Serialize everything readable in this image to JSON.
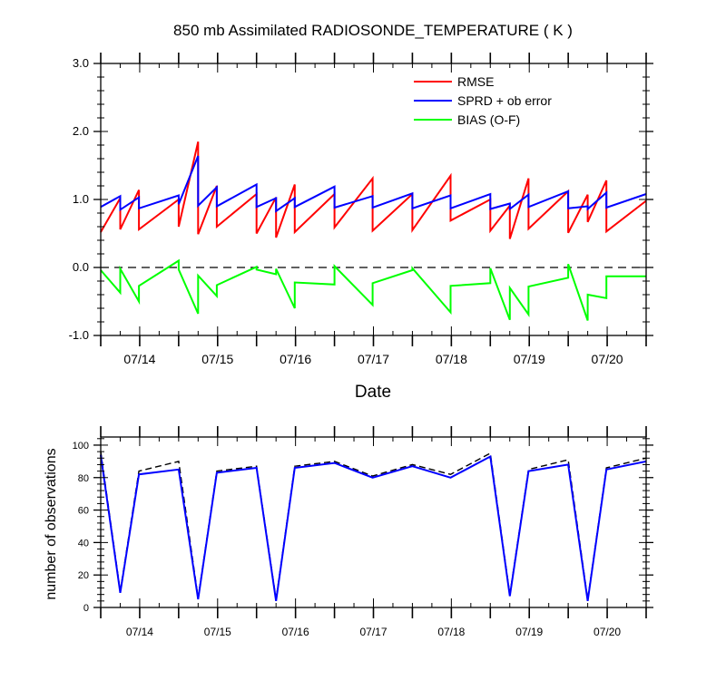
{
  "chart_data": [
    {
      "type": "line",
      "title": "850 mb Assimilated RADIOSONDE_TEMPERATURE ( K )",
      "xlabel": "Date",
      "ylabel": "",
      "xlim": [
        13.5,
        20.5
      ],
      "ylim": [
        -1.0,
        3.0
      ],
      "yticks": [
        -1.0,
        0.0,
        1.0,
        2.0,
        3.0
      ],
      "ytick_labels": [
        "-1.0",
        "0.0",
        "1.0",
        "2.0",
        "3.0"
      ],
      "xticks": [
        14,
        15,
        16,
        17,
        18,
        19,
        20
      ],
      "xtick_labels": [
        "07/14",
        "07/15",
        "07/16",
        "07/17",
        "07/18",
        "07/19",
        "07/20"
      ],
      "zero_line": true,
      "legend_position": "top-right",
      "series": [
        {
          "name": "RMSE",
          "color": "#ff0000",
          "points": [
            [
              13.5,
              0.52
            ],
            [
              13.75,
              1.02
            ],
            [
              13.75,
              0.56
            ],
            [
              13.99,
              1.14
            ],
            [
              13.99,
              0.56
            ],
            [
              14.5,
              1.0
            ],
            [
              14.5,
              0.6
            ],
            [
              14.75,
              1.85
            ],
            [
              14.75,
              0.49
            ],
            [
              14.99,
              1.2
            ],
            [
              14.99,
              0.6
            ],
            [
              15.5,
              1.08
            ],
            [
              15.5,
              0.5
            ],
            [
              15.75,
              1.03
            ],
            [
              15.75,
              0.44
            ],
            [
              15.99,
              1.22
            ],
            [
              15.99,
              0.52
            ],
            [
              16.5,
              1.08
            ],
            [
              16.5,
              0.59
            ],
            [
              16.99,
              1.31
            ],
            [
              16.99,
              0.54
            ],
            [
              17.5,
              1.08
            ],
            [
              17.5,
              0.55
            ],
            [
              17.99,
              1.35
            ],
            [
              17.99,
              0.69
            ],
            [
              18.5,
              1.0
            ],
            [
              18.5,
              0.54
            ],
            [
              18.75,
              0.91
            ],
            [
              18.75,
              0.42
            ],
            [
              18.99,
              1.31
            ],
            [
              18.99,
              0.57
            ],
            [
              19.5,
              1.12
            ],
            [
              19.5,
              0.51
            ],
            [
              19.75,
              1.07
            ],
            [
              19.75,
              0.67
            ],
            [
              19.99,
              1.28
            ],
            [
              19.99,
              0.53
            ],
            [
              20.5,
              0.98
            ]
          ]
        },
        {
          "name": "SPRD + ob error",
          "color": "#0000ff",
          "points": [
            [
              13.5,
              0.89
            ],
            [
              13.75,
              1.05
            ],
            [
              13.75,
              0.85
            ],
            [
              13.99,
              1.03
            ],
            [
              13.99,
              0.87
            ],
            [
              14.5,
              1.06
            ],
            [
              14.5,
              0.93
            ],
            [
              14.75,
              1.64
            ],
            [
              14.75,
              0.91
            ],
            [
              14.99,
              1.18
            ],
            [
              14.99,
              0.9
            ],
            [
              15.5,
              1.22
            ],
            [
              15.5,
              0.89
            ],
            [
              15.75,
              1.02
            ],
            [
              15.75,
              0.83
            ],
            [
              15.99,
              1.02
            ],
            [
              15.99,
              0.89
            ],
            [
              16.5,
              1.19
            ],
            [
              16.5,
              0.88
            ],
            [
              16.99,
              1.05
            ],
            [
              16.99,
              0.88
            ],
            [
              17.5,
              1.09
            ],
            [
              17.5,
              0.87
            ],
            [
              17.99,
              1.06
            ],
            [
              17.99,
              0.87
            ],
            [
              18.5,
              1.08
            ],
            [
              18.5,
              0.86
            ],
            [
              18.75,
              0.94
            ],
            [
              18.75,
              0.86
            ],
            [
              18.99,
              1.07
            ],
            [
              18.99,
              0.89
            ],
            [
              19.5,
              1.12
            ],
            [
              19.5,
              0.87
            ],
            [
              19.75,
              0.9
            ],
            [
              19.75,
              0.86
            ],
            [
              19.99,
              1.1
            ],
            [
              19.99,
              0.88
            ],
            [
              20.5,
              1.08
            ]
          ]
        },
        {
          "name": "BIAS (O-F)",
          "color": "#00ff00",
          "points": [
            [
              13.5,
              -0.04
            ],
            [
              13.75,
              -0.37
            ],
            [
              13.75,
              -0.02
            ],
            [
              13.99,
              -0.5
            ],
            [
              13.99,
              -0.27
            ],
            [
              14.5,
              0.1
            ],
            [
              14.5,
              -0.03
            ],
            [
              14.75,
              -0.68
            ],
            [
              14.75,
              -0.12
            ],
            [
              14.99,
              -0.42
            ],
            [
              14.99,
              -0.26
            ],
            [
              15.5,
              0.01
            ],
            [
              15.5,
              -0.03
            ],
            [
              15.75,
              -0.1
            ],
            [
              15.75,
              -0.02
            ],
            [
              15.99,
              -0.6
            ],
            [
              15.99,
              -0.22
            ],
            [
              16.5,
              -0.25
            ],
            [
              16.5,
              0.02
            ],
            [
              16.99,
              -0.55
            ],
            [
              16.99,
              -0.23
            ],
            [
              17.5,
              -0.04
            ],
            [
              17.5,
              -0.01
            ],
            [
              17.99,
              -0.66
            ],
            [
              17.99,
              -0.27
            ],
            [
              18.5,
              -0.23
            ],
            [
              18.5,
              -0.01
            ],
            [
              18.75,
              -0.77
            ],
            [
              18.75,
              -0.3
            ],
            [
              18.99,
              -0.69
            ],
            [
              18.99,
              -0.28
            ],
            [
              19.5,
              -0.15
            ],
            [
              19.5,
              0.05
            ],
            [
              19.75,
              -0.78
            ],
            [
              19.75,
              -0.4
            ],
            [
              19.99,
              -0.45
            ],
            [
              19.99,
              -0.13
            ],
            [
              20.5,
              -0.13
            ]
          ]
        }
      ]
    },
    {
      "type": "line",
      "title": "",
      "xlabel": "",
      "ylabel": "number of observations",
      "xlim": [
        13.5,
        20.5
      ],
      "ylim": [
        0,
        105
      ],
      "yticks": [
        0,
        20,
        40,
        60,
        80,
        100
      ],
      "ytick_labels": [
        "0",
        "20",
        "40",
        "60",
        "80",
        "100"
      ],
      "xticks": [
        14,
        15,
        16,
        17,
        18,
        19,
        20
      ],
      "xtick_labels": [
        "07/14",
        "07/15",
        "07/16",
        "07/17",
        "07/18",
        "07/19",
        "07/20"
      ],
      "series": [
        {
          "color": "#000000",
          "dashed": true,
          "x": [
            13.5,
            13.75,
            13.99,
            14.5,
            14.75,
            14.99,
            15.5,
            15.75,
            15.99,
            16.5,
            16.99,
            17.5,
            17.99,
            18.5,
            18.75,
            18.99,
            19.5,
            19.75,
            19.99,
            20.5
          ],
          "y": [
            96,
            10,
            84,
            90,
            6,
            84,
            87,
            5,
            87,
            90,
            81,
            88,
            82,
            95,
            8,
            85,
            91,
            5,
            86,
            92
          ]
        },
        {
          "color": "#0000ff",
          "dashed": false,
          "x": [
            13.5,
            13.75,
            13.99,
            14.5,
            14.75,
            14.99,
            15.5,
            15.75,
            15.99,
            16.5,
            16.99,
            17.5,
            17.99,
            18.5,
            18.75,
            18.99,
            19.5,
            19.75,
            19.99,
            20.5
          ],
          "y": [
            94,
            9,
            82,
            85,
            5,
            83,
            86,
            4,
            86,
            89,
            80,
            87,
            80,
            93,
            7,
            84,
            88,
            4,
            85,
            90
          ]
        }
      ]
    }
  ]
}
